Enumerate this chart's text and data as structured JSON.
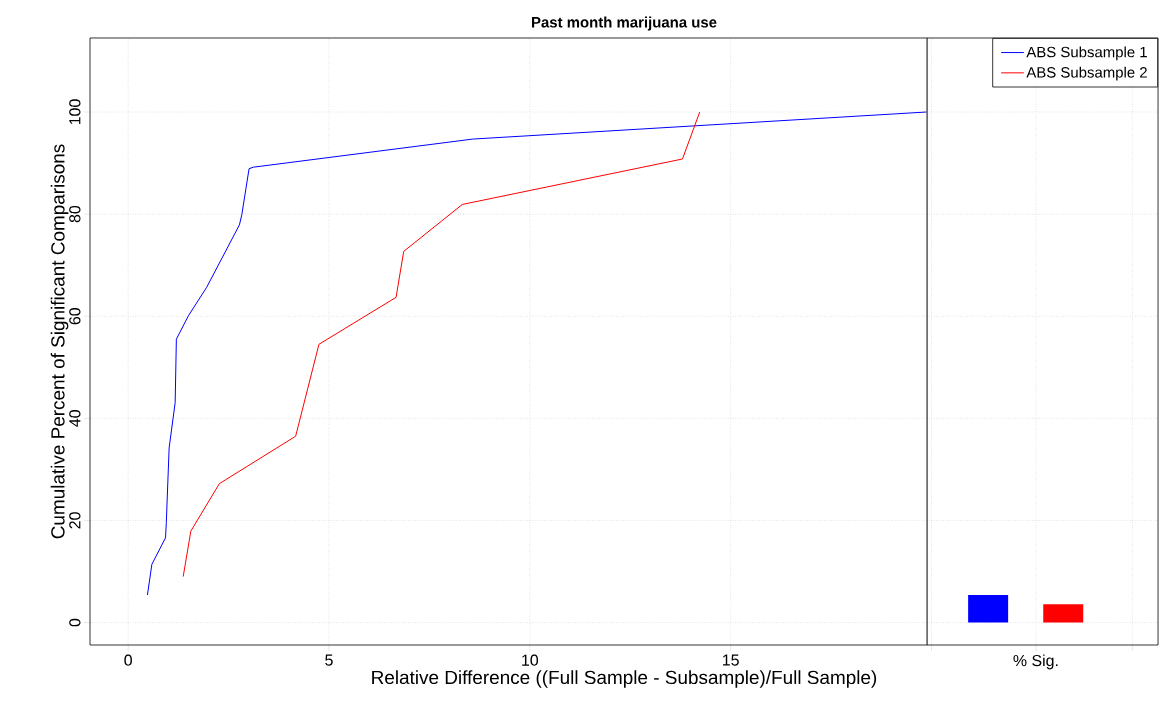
{
  "chart_data": {
    "type": "line",
    "title": "Past month marijuana use",
    "xlabel": "Relative Difference ((Full Sample - Subsample)/Full Sample)",
    "ylabel": "Cumulative Percent of Significant Comparisons",
    "xlim": [
      -0.95,
      25.64
    ],
    "ylim": [
      -4.4,
      114.5
    ],
    "xticks": [
      0,
      5,
      10,
      15,
      {
        "value": 20,
        "label": null
      },
      {
        "value": 22.6,
        "label": "% Sig."
      },
      {
        "value": 25,
        "label": null
      }
    ],
    "yticks": [
      0,
      20,
      40,
      60,
      80,
      100
    ],
    "grid": true,
    "legend": "top right",
    "ref_lines": [
      {
        "axis": "x",
        "value": 19.89,
        "color": "#000000"
      }
    ],
    "series": [
      {
        "name": "ABS Subsample 1",
        "color": "#0000ff",
        "x": [
          0.48,
          0.59,
          0.93,
          0.95,
          1.02,
          1.17,
          1.2,
          1.5,
          1.95,
          2.77,
          2.83,
          3.01,
          3.12,
          8.58,
          19.87
        ],
        "values": [
          5.4,
          11.4,
          16.6,
          19.6,
          34.2,
          43.1,
          55.5,
          60.1,
          65.6,
          77.9,
          79.9,
          88.9,
          89.2,
          94.7,
          100
        ]
      },
      {
        "name": "ABS Subsample 2",
        "color": "#ff0000",
        "x": [
          1.37,
          1.56,
          2.27,
          4.17,
          4.75,
          6.67,
          6.86,
          8.32,
          13.8,
          14.23
        ],
        "values": [
          9.0,
          17.9,
          27.2,
          36.5,
          54.5,
          63.7,
          72.7,
          81.9,
          90.8,
          100
        ]
      },
      {
        "type": "bar",
        "color": "#0000ff",
        "x": [
          21.41
        ],
        "values": [
          5.4
        ]
      },
      {
        "type": "bar",
        "color": "#ff0000",
        "x": [
          23.28
        ],
        "values": [
          3.6
        ]
      }
    ]
  }
}
